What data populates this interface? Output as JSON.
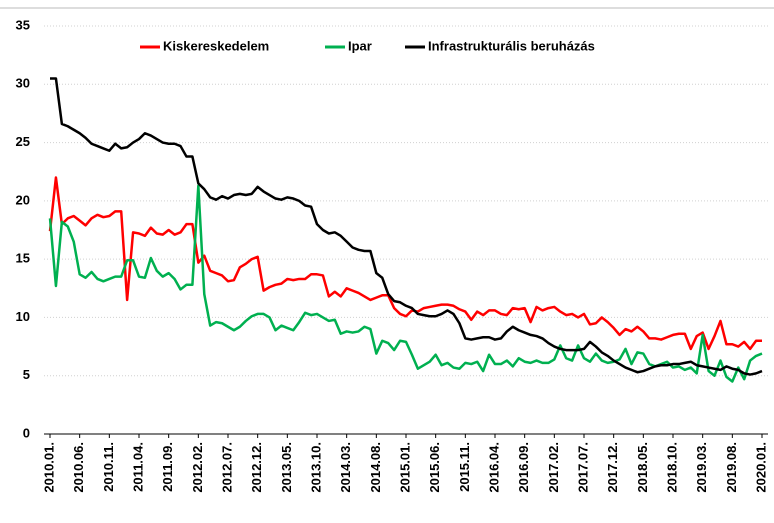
{
  "chart_data": {
    "type": "line",
    "categories": [
      "2010.01.",
      null,
      null,
      null,
      null,
      "2010.06.",
      null,
      null,
      null,
      null,
      "2010.11.",
      null,
      null,
      null,
      null,
      "2011.04.",
      null,
      null,
      null,
      null,
      "2011.09.",
      null,
      null,
      null,
      null,
      "2012.02.",
      null,
      null,
      null,
      null,
      "2012.07.",
      null,
      null,
      null,
      null,
      "2012.12.",
      null,
      null,
      null,
      null,
      "2013.05.",
      null,
      null,
      null,
      null,
      "2013.10.",
      null,
      null,
      null,
      null,
      "2014.03.",
      null,
      null,
      null,
      null,
      "2014.08.",
      null,
      null,
      null,
      null,
      "2015.01.",
      null,
      null,
      null,
      null,
      "2015.06.",
      null,
      null,
      null,
      null,
      "2015.11.",
      null,
      null,
      null,
      null,
      "2016.04.",
      null,
      null,
      null,
      null,
      "2016.09.",
      null,
      null,
      null,
      null,
      "2017.02.",
      null,
      null,
      null,
      null,
      "2017.07.",
      null,
      null,
      null,
      null,
      "2017.12.",
      null,
      null,
      null,
      null,
      "2018.05.",
      null,
      null,
      null,
      null,
      "2018.10.",
      null,
      null,
      null,
      null,
      "2019.03.",
      null,
      null,
      null,
      null,
      "2019.08.",
      null,
      null,
      null,
      null,
      "2020.01."
    ],
    "series": [
      {
        "name": "Kiskereskedelem",
        "color": "#ff0000",
        "values": [
          17.4,
          22.0,
          18.0,
          18.5,
          18.7,
          18.3,
          17.9,
          18.5,
          18.8,
          18.6,
          18.7,
          19.1,
          19.1,
          11.5,
          17.3,
          17.2,
          17.0,
          17.7,
          17.2,
          17.1,
          17.5,
          17.1,
          17.3,
          18.0,
          18.0,
          14.7,
          15.3,
          14.0,
          13.8,
          13.6,
          13.1,
          13.2,
          14.3,
          14.6,
          15.0,
          15.2,
          12.3,
          12.6,
          12.8,
          12.9,
          13.3,
          13.2,
          13.3,
          13.3,
          13.7,
          13.7,
          13.6,
          11.8,
          12.2,
          11.8,
          12.5,
          12.3,
          12.1,
          11.8,
          11.5,
          11.7,
          11.9,
          11.9,
          10.8,
          10.3,
          10.1,
          10.6,
          10.5,
          10.8,
          10.9,
          11.0,
          11.1,
          11.1,
          11.0,
          10.7,
          10.5,
          9.8,
          10.5,
          10.2,
          10.6,
          10.6,
          10.3,
          10.2,
          10.8,
          10.7,
          10.8,
          9.6,
          10.9,
          10.6,
          10.8,
          10.9,
          10.5,
          10.2,
          10.3,
          10.0,
          10.3,
          9.4,
          9.5,
          10.0,
          9.6,
          9.1,
          8.5,
          9.0,
          8.8,
          9.2,
          8.8,
          8.2,
          8.2,
          8.1,
          8.3,
          8.5,
          8.6,
          8.6,
          7.3,
          8.4,
          8.7,
          7.3,
          8.4,
          9.7,
          7.7,
          7.7,
          7.5,
          7.9,
          7.3,
          8.0,
          8.0
        ]
      },
      {
        "name": "Ipar",
        "color": "#00b050",
        "values": [
          18.5,
          12.7,
          18.2,
          17.8,
          16.5,
          13.7,
          13.4,
          13.9,
          13.3,
          13.1,
          13.3,
          13.5,
          13.5,
          14.9,
          14.9,
          13.5,
          13.4,
          15.1,
          14.0,
          13.5,
          13.8,
          13.3,
          12.4,
          12.8,
          12.8,
          21.3,
          12.0,
          9.3,
          9.6,
          9.5,
          9.2,
          8.9,
          9.2,
          9.7,
          10.1,
          10.3,
          10.3,
          10.0,
          8.9,
          9.3,
          9.1,
          8.9,
          9.6,
          10.4,
          10.2,
          10.3,
          10.0,
          9.7,
          9.8,
          8.6,
          8.8,
          8.7,
          8.8,
          9.2,
          9.0,
          6.9,
          8.0,
          7.8,
          7.2,
          8.0,
          7.9,
          6.8,
          5.6,
          5.9,
          6.2,
          6.8,
          5.9,
          6.1,
          5.7,
          5.6,
          6.1,
          6.0,
          6.2,
          5.4,
          6.8,
          6.0,
          6.0,
          6.3,
          5.8,
          6.5,
          6.2,
          6.1,
          6.3,
          6.1,
          6.1,
          6.4,
          7.6,
          6.5,
          6.3,
          7.6,
          6.5,
          6.2,
          6.9,
          6.3,
          6.1,
          6.2,
          6.4,
          7.3,
          6.0,
          7.0,
          6.9,
          6.0,
          5.8,
          6.0,
          6.2,
          5.7,
          5.8,
          5.5,
          5.7,
          5.2,
          8.5,
          5.4,
          5.0,
          6.3,
          4.9,
          4.5,
          5.7,
          4.7,
          6.3,
          6.7,
          6.9
        ]
      },
      {
        "name": "Infrastrukturális beruházás",
        "color": "#000000",
        "values": [
          30.5,
          30.5,
          26.6,
          26.4,
          26.1,
          25.8,
          25.4,
          24.9,
          24.7,
          24.5,
          24.3,
          24.9,
          24.5,
          24.6,
          25.0,
          25.3,
          25.8,
          25.6,
          25.3,
          25.0,
          24.9,
          24.9,
          24.7,
          23.8,
          23.8,
          21.5,
          21.0,
          20.3,
          20.1,
          20.4,
          20.2,
          20.5,
          20.6,
          20.5,
          20.6,
          21.2,
          20.8,
          20.5,
          20.2,
          20.1,
          20.3,
          20.2,
          20.0,
          19.6,
          19.5,
          18.0,
          17.5,
          17.2,
          17.3,
          17.0,
          16.5,
          16.0,
          15.8,
          15.7,
          15.7,
          13.8,
          13.4,
          12.0,
          11.4,
          11.3,
          11.0,
          10.8,
          10.3,
          10.2,
          10.1,
          10.1,
          10.3,
          10.6,
          10.3,
          9.5,
          8.2,
          8.1,
          8.2,
          8.3,
          8.3,
          8.1,
          8.2,
          8.8,
          9.2,
          8.9,
          8.7,
          8.5,
          8.4,
          8.2,
          7.8,
          7.5,
          7.3,
          7.2,
          7.2,
          7.2,
          7.3,
          7.9,
          7.5,
          7.0,
          6.7,
          6.3,
          6.0,
          5.7,
          5.5,
          5.3,
          5.4,
          5.6,
          5.8,
          5.9,
          5.9,
          6.0,
          6.0,
          6.1,
          6.2,
          5.9,
          5.8,
          5.7,
          5.6,
          5.5,
          5.8,
          5.6,
          5.5,
          5.2,
          5.1,
          5.2,
          5.4
        ]
      }
    ],
    "ylim": [
      0,
      35
    ],
    "yticks": [
      0,
      5,
      10,
      15,
      20,
      25,
      30,
      35
    ],
    "grid": true
  }
}
